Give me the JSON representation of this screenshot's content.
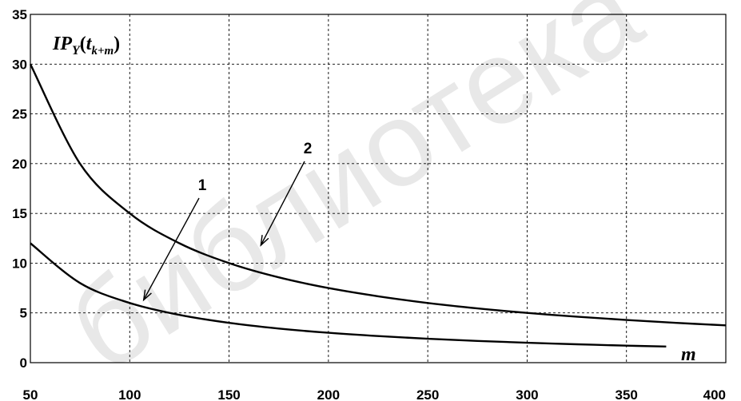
{
  "chart_data": {
    "type": "line",
    "title": "",
    "xlabel": "m",
    "ylabel_main": "IP",
    "ylabel_sub1": "Y",
    "ylabel_paren_open": "(",
    "ylabel_t": "t",
    "ylabel_sub2": "k+m",
    "ylabel_paren_close": ")",
    "xlim": [
      50,
      400
    ],
    "ylim": [
      0,
      35
    ],
    "xticks": [
      50,
      100,
      150,
      200,
      250,
      300,
      350,
      400
    ],
    "yticks": [
      0,
      5,
      10,
      15,
      20,
      25,
      30,
      35
    ],
    "grid": true,
    "series": [
      {
        "name": "1",
        "x": [
          50,
          75,
          100,
          125,
          150,
          175,
          200,
          225,
          250,
          275,
          300,
          325,
          350,
          370
        ],
        "y": [
          12,
          8.0,
          6.0,
          4.8,
          4.0,
          3.43,
          3.0,
          2.67,
          2.4,
          2.18,
          2.0,
          1.85,
          1.71,
          1.62
        ]
      },
      {
        "name": "2",
        "x": [
          50,
          75,
          100,
          125,
          150,
          175,
          200,
          225,
          250,
          275,
          300,
          325,
          350,
          375,
          400
        ],
        "y": [
          30,
          20.0,
          15.0,
          12.0,
          10.0,
          8.57,
          7.5,
          6.67,
          6.0,
          5.45,
          5.0,
          4.62,
          4.29,
          4.0,
          3.75
        ]
      }
    ],
    "annotations": [
      {
        "label": "1",
        "arrow_to": [
          107,
          6.3
        ]
      },
      {
        "label": "2",
        "arrow_to": [
          166,
          11.8
        ]
      }
    ]
  },
  "watermark": "библиотека"
}
